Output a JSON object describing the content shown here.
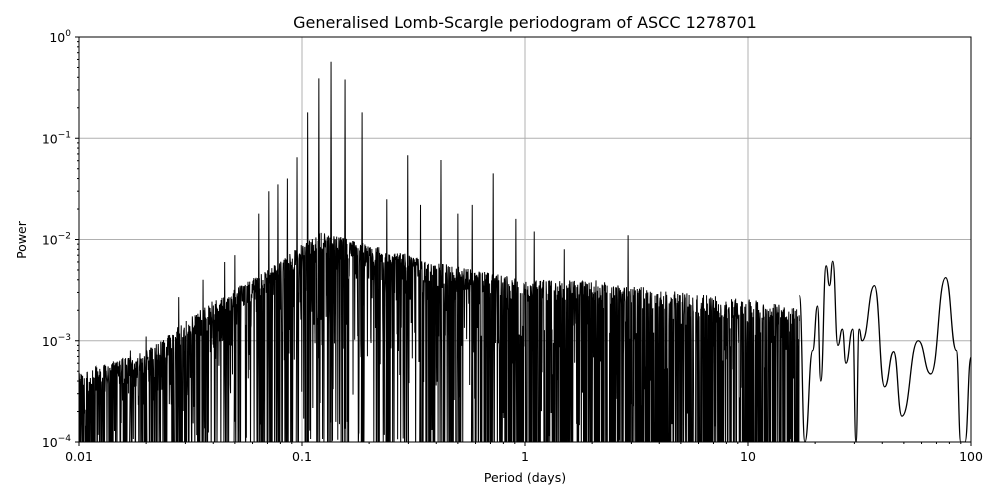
{
  "chart_data": {
    "type": "line",
    "title": "Generalised Lomb-Scargle periodogram of ASCC 1278701",
    "xlabel": "Period (days)",
    "ylabel": "Power",
    "xscale": "log",
    "yscale": "log",
    "xlim": [
      0.01,
      100
    ],
    "ylim": [
      0.0001,
      1
    ],
    "grid": true,
    "legend": null,
    "x_ticks": [
      {
        "value": 0.01,
        "label": "0.01"
      },
      {
        "value": 0.1,
        "label": "0.1"
      },
      {
        "value": 1,
        "label": "1"
      },
      {
        "value": 10,
        "label": "10"
      },
      {
        "value": 100,
        "label": "100"
      }
    ],
    "y_ticks": [
      {
        "value": 0.0001,
        "base": "10",
        "exp": "−4"
      },
      {
        "value": 0.001,
        "base": "10",
        "exp": "−3"
      },
      {
        "value": 0.01,
        "base": "10",
        "exp": "−2"
      },
      {
        "value": 0.1,
        "base": "10",
        "exp": "−1"
      },
      {
        "value": 1,
        "base": "10",
        "exp": "0"
      }
    ],
    "line_color": "#000000",
    "grid_color": "#b0b0b0",
    "envelope": {
      "description": "approximate upper envelope of dense noise (period, power)",
      "points": [
        [
          0.01,
          0.0005
        ],
        [
          0.02,
          0.0008
        ],
        [
          0.04,
          0.0025
        ],
        [
          0.07,
          0.005
        ],
        [
          0.12,
          0.012
        ],
        [
          0.2,
          0.009
        ],
        [
          0.4,
          0.006
        ],
        [
          1,
          0.004
        ],
        [
          2,
          0.004
        ],
        [
          5,
          0.003
        ],
        [
          12,
          0.0025
        ],
        [
          18,
          0.002
        ]
      ]
    },
    "peaks": [
      {
        "period": 0.135,
        "power": 0.57
      },
      {
        "period": 0.119,
        "power": 0.39
      },
      {
        "period": 0.156,
        "power": 0.38
      },
      {
        "period": 0.106,
        "power": 0.18
      },
      {
        "period": 0.186,
        "power": 0.18
      },
      {
        "period": 0.095,
        "power": 0.065
      },
      {
        "period": 0.086,
        "power": 0.04
      },
      {
        "period": 0.078,
        "power": 0.035
      },
      {
        "period": 0.071,
        "power": 0.03
      },
      {
        "period": 0.064,
        "power": 0.018
      },
      {
        "period": 0.298,
        "power": 0.068
      },
      {
        "period": 0.42,
        "power": 0.061
      },
      {
        "period": 0.72,
        "power": 0.045
      },
      {
        "period": 0.24,
        "power": 0.025
      },
      {
        "period": 0.34,
        "power": 0.022
      },
      {
        "period": 0.5,
        "power": 0.018
      },
      {
        "period": 0.58,
        "power": 0.022
      },
      {
        "period": 0.91,
        "power": 0.016
      },
      {
        "period": 2.9,
        "power": 0.011
      },
      {
        "period": 1.1,
        "power": 0.012
      },
      {
        "period": 1.5,
        "power": 0.008
      },
      {
        "period": 0.045,
        "power": 0.006
      },
      {
        "period": 0.05,
        "power": 0.007
      },
      {
        "period": 0.036,
        "power": 0.004
      },
      {
        "period": 0.028,
        "power": 0.0027
      },
      {
        "period": 0.02,
        "power": 0.0011
      },
      {
        "period": 0.017,
        "power": 0.0008
      }
    ],
    "smooth_region": {
      "description": "smooth oscillating tail at long periods (period, power)",
      "points": [
        [
          17,
          0.0028
        ],
        [
          18,
          0.0001
        ],
        [
          19.5,
          0.0008
        ],
        [
          20.5,
          0.0022
        ],
        [
          21.2,
          0.0004
        ],
        [
          22.4,
          0.0055
        ],
        [
          23.2,
          0.0035
        ],
        [
          24,
          0.0061
        ],
        [
          25.3,
          0.0009
        ],
        [
          26.5,
          0.0013
        ],
        [
          27.5,
          0.0006
        ],
        [
          29.5,
          0.0013
        ],
        [
          30.5,
          0.0001
        ],
        [
          31.5,
          0.0013
        ],
        [
          32.5,
          0.001
        ],
        [
          36.9,
          0.0035
        ],
        [
          41,
          0.00035
        ],
        [
          45,
          0.00078
        ],
        [
          49,
          0.00018
        ],
        [
          58,
          0.001
        ],
        [
          66,
          0.00047
        ],
        [
          77,
          0.0042
        ],
        [
          86,
          0.0008
        ],
        [
          90,
          0.0001
        ],
        [
          94,
          0.0001
        ],
        [
          100,
          0.00069
        ]
      ]
    }
  }
}
